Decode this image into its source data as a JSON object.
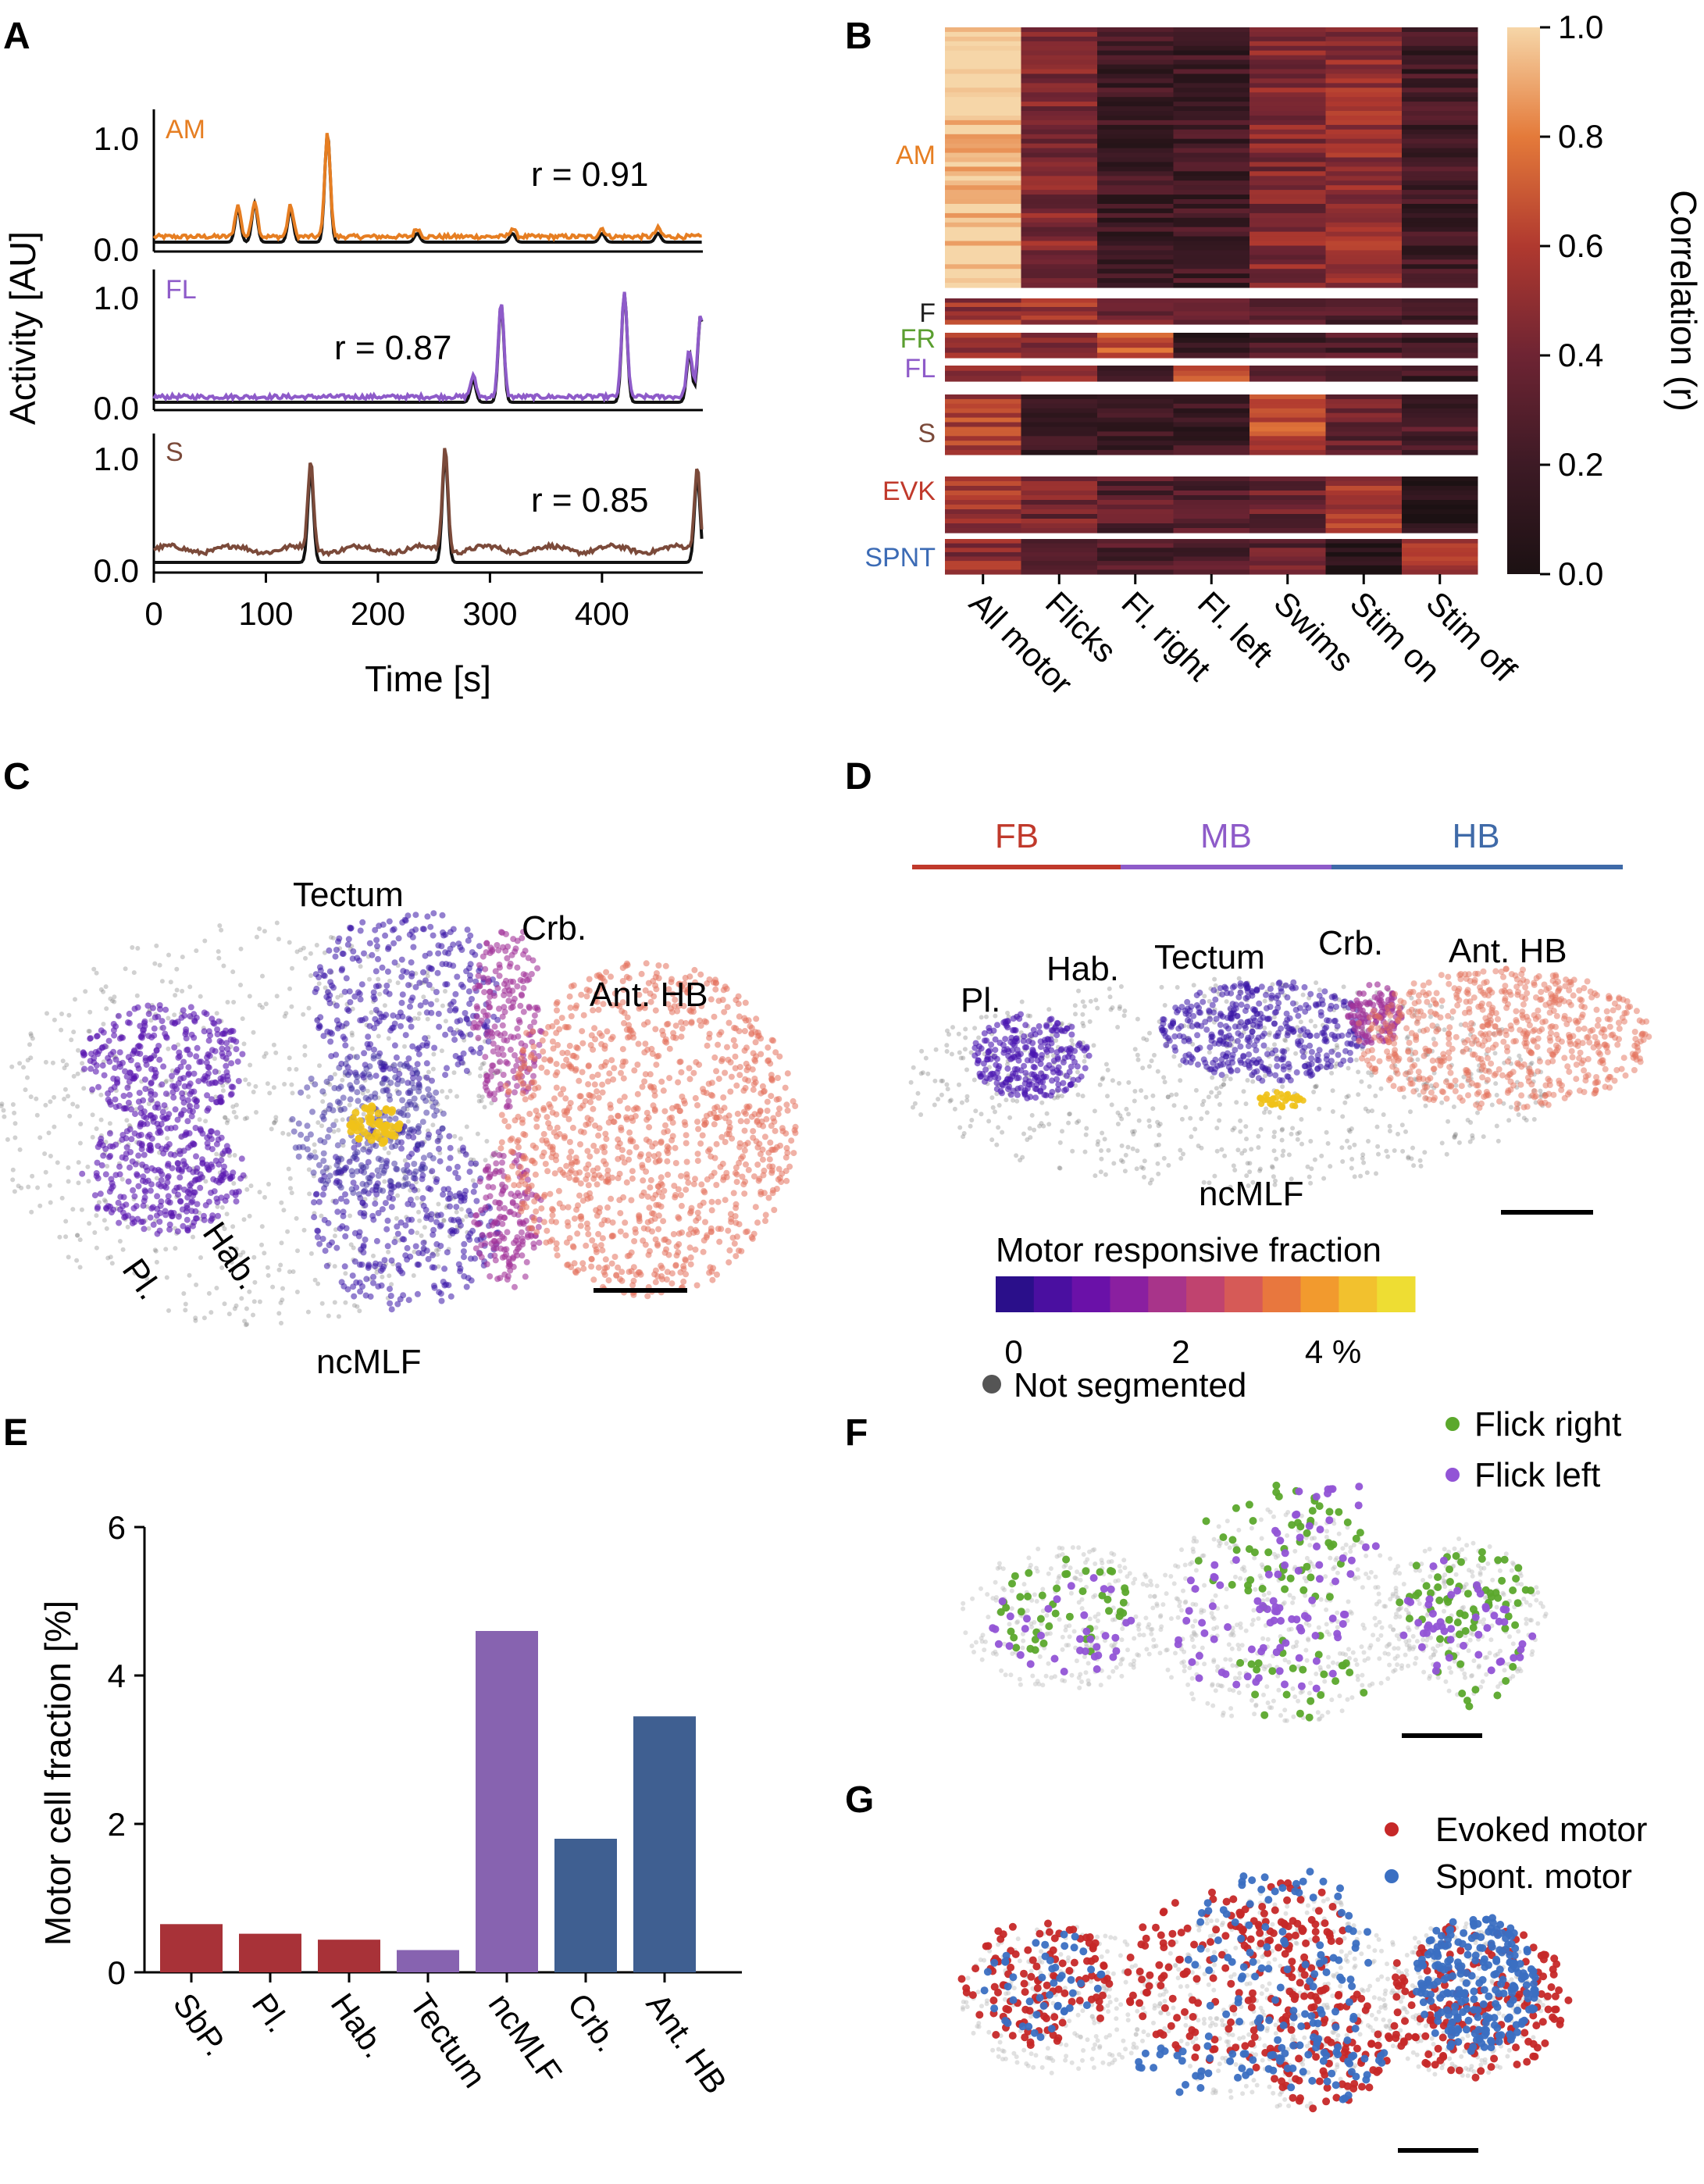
{
  "panels": [
    "A",
    "B",
    "C",
    "D",
    "E",
    "F",
    "G"
  ],
  "colors": {
    "AM": "#e67e22",
    "FL": "#8e5bc9",
    "S": "#7b4a3a",
    "F": "#222222",
    "FR": "#5a9e2f",
    "EVK": "#c0392b",
    "SPNT": "#3c6bb5",
    "FB": "#c0392b",
    "MB": "#8e5bc9",
    "HB": "#3f6aa8",
    "flick_right": "#5ba82c",
    "flick_left": "#9254d6",
    "evoked": "#c62828",
    "spont": "#3b6fc2",
    "gray_cells": "#bdbdbd"
  },
  "panelA": {
    "ylabel": "Activity [AU]",
    "xlabel": "Time [s]",
    "xticks": [
      "0",
      "100",
      "200",
      "300",
      "400"
    ],
    "yticks": [
      "0.0",
      "1.0"
    ],
    "traces": [
      {
        "label": "AM",
        "r": "r = 0.91",
        "peaks": [
          [
            75,
            0.3
          ],
          [
            90,
            0.35
          ],
          [
            122,
            0.3
          ],
          [
            155,
            1.0
          ],
          [
            235,
            0.08
          ],
          [
            320,
            0.08
          ],
          [
            400,
            0.08
          ],
          [
            450,
            0.08
          ]
        ]
      },
      {
        "label": "FL",
        "r": "r = 0.87",
        "peaks": [
          [
            285,
            0.2
          ],
          [
            310,
            0.9
          ],
          [
            420,
            1.0
          ],
          [
            478,
            0.45
          ],
          [
            488,
            0.8
          ]
        ]
      },
      {
        "label": "S",
        "r": "r = 0.85",
        "peaks": [
          [
            140,
            0.85
          ],
          [
            260,
            1.0
          ],
          [
            485,
            0.8
          ]
        ]
      }
    ]
  },
  "chart_data": [
    {
      "type": "heatmap",
      "panel": "B",
      "columns": [
        "All motor",
        "Flicks",
        "Fl. right",
        "Fl. left",
        "Swims",
        "Stim on",
        "Stim off"
      ],
      "groups": [
        {
          "name": "AM",
          "mean_r": [
            1.0,
            0.45,
            0.2,
            0.2,
            0.45,
            0.5,
            0.2
          ]
        },
        {
          "name": "F",
          "mean_r": [
            0.55,
            0.55,
            0.35,
            0.3,
            0.3,
            0.3,
            0.2
          ]
        },
        {
          "name": "FR",
          "mean_r": [
            0.55,
            0.45,
            0.65,
            0.15,
            0.25,
            0.25,
            0.2
          ]
        },
        {
          "name": "FL",
          "mean_r": [
            0.5,
            0.45,
            0.15,
            0.65,
            0.3,
            0.3,
            0.2
          ]
        },
        {
          "name": "S",
          "mean_r": [
            0.6,
            0.2,
            0.2,
            0.2,
            0.65,
            0.35,
            0.25
          ]
        },
        {
          "name": "EVK",
          "mean_r": [
            0.55,
            0.4,
            0.3,
            0.3,
            0.35,
            0.6,
            0.05
          ]
        },
        {
          "name": "SPNT",
          "mean_r": [
            0.5,
            0.35,
            0.25,
            0.3,
            0.35,
            0.05,
            0.6
          ]
        }
      ],
      "colorbar_label": "Correlation (r)",
      "colorbar_ticks": [
        "0.0",
        "0.2",
        "0.4",
        "0.6",
        "0.8",
        "1.0"
      ]
    },
    {
      "type": "bar",
      "panel": "E",
      "categories": [
        "SbP.",
        "Pl.",
        "Hab.",
        "Tectum",
        "ncMLF",
        "Crb.",
        "Ant. HB"
      ],
      "values": [
        0.65,
        0.52,
        0.44,
        0.3,
        4.6,
        1.8,
        3.45
      ],
      "bar_colors": [
        "#a83238",
        "#a83238",
        "#a83238",
        "#8763b0",
        "#8763b0",
        "#3f5f91",
        "#3f5f91"
      ],
      "ylabel": "Motor cell fraction [%]",
      "ylim": [
        0,
        6
      ],
      "yticks": [
        "0",
        "2",
        "4",
        "6"
      ]
    }
  ],
  "panelC": {
    "labels": {
      "tectum": "Tectum",
      "crb": "Crb.",
      "antHB": "Ant. HB",
      "pl": "Pl.",
      "hab": "Hab.",
      "ncMLF": "ncMLF"
    }
  },
  "panelD": {
    "regions": {
      "fb": "FB",
      "mb": "MB",
      "hb": "HB"
    },
    "labels": {
      "tectum": "Tectum",
      "crb": "Crb.",
      "antHB": "Ant. HB",
      "pl": "Pl.",
      "hab": "Hab.",
      "ncMLF": "ncMLF"
    },
    "colorbar_title": "Motor responsive fraction",
    "colorbar_ticks": [
      "0",
      "2",
      "4 %"
    ],
    "colorbar_colors": [
      "#2a0f8a",
      "#4a0fa0",
      "#6a11a8",
      "#8a1fa0",
      "#a8348a",
      "#c0436f",
      "#d65a57",
      "#e8773e",
      "#f29a2e",
      "#f2c12e",
      "#eedd33"
    ],
    "not_segmented": "Not segmented"
  },
  "panelF": {
    "legend": [
      "Flick right",
      "Flick left"
    ]
  },
  "panelG": {
    "legend": [
      "Evoked motor",
      "Spont. motor"
    ]
  }
}
